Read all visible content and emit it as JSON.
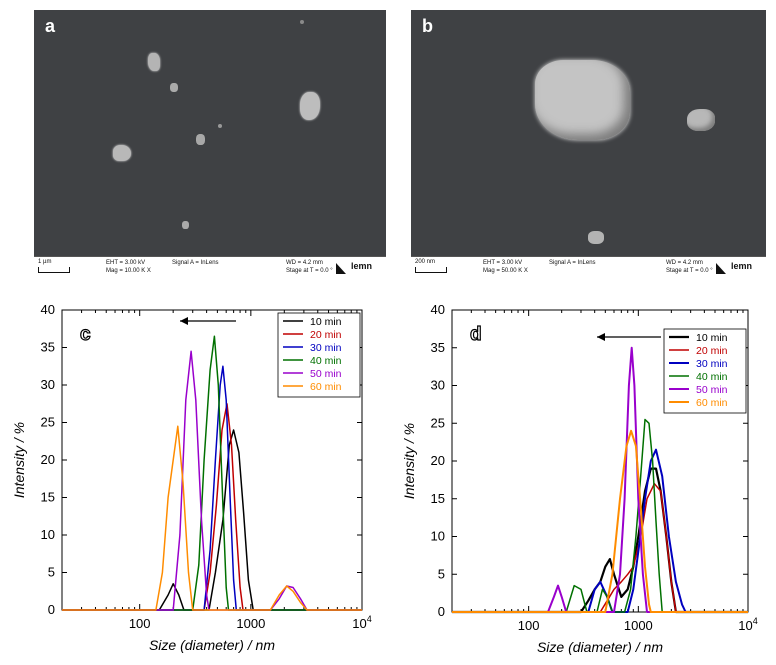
{
  "micrographs": [
    {
      "letter": "a",
      "scale_label": "1 µm",
      "eht": "EHT = 3.00 kV",
      "mag": "Mag = 10.00 K X",
      "signal": "Signal A = InLens",
      "wd": "WD = 4.2 mm",
      "stage": "Stage at T = 0.0 °",
      "logo": "lemn"
    },
    {
      "letter": "b",
      "scale_label": "200 nm",
      "eht": "EHT = 3.00 kV",
      "mag": "Mag = 50.00 K X",
      "signal": "Signal A = InLens",
      "wd": "WD = 4.2 mm",
      "stage": "Stage at T = 0.0 °",
      "logo": "lemn"
    }
  ],
  "chart_data": [
    {
      "type": "line",
      "panel": "c",
      "xlabel": "Size (diameter) / nm",
      "ylabel": "Intensity / %",
      "xscale": "log",
      "xlim": [
        20,
        10000
      ],
      "ylim": [
        0,
        40
      ],
      "xticks": [
        {
          "v": 100,
          "label": "100"
        },
        {
          "v": 1000,
          "label": "1000"
        },
        {
          "v": 10000,
          "label": "10",
          "sup": "4"
        }
      ],
      "yticks": [
        0,
        5,
        10,
        15,
        20,
        25,
        30,
        35,
        40
      ],
      "legend_position": "top-right",
      "arrow": "left",
      "series": [
        {
          "name": "10 min",
          "color": "#000000",
          "points": [
            [
              20,
              0
            ],
            [
              150,
              0
            ],
            [
              180,
              2
            ],
            [
              200,
              3.5
            ],
            [
              225,
              2
            ],
            [
              250,
              0
            ],
            [
              420,
              0
            ],
            [
              480,
              5
            ],
            [
              560,
              12
            ],
            [
              640,
              22
            ],
            [
              700,
              24
            ],
            [
              780,
              21
            ],
            [
              860,
              13
            ],
            [
              950,
              4
            ],
            [
              1050,
              0
            ],
            [
              10000,
              0
            ]
          ]
        },
        {
          "name": "20 min",
          "color": "#c00000",
          "points": [
            [
              20,
              0
            ],
            [
              380,
              0
            ],
            [
              430,
              5
            ],
            [
              490,
              14
            ],
            [
              550,
              24
            ],
            [
              610,
              27.5
            ],
            [
              670,
              22
            ],
            [
              730,
              12
            ],
            [
              800,
              3
            ],
            [
              850,
              0
            ],
            [
              10000,
              0
            ]
          ]
        },
        {
          "name": "30 min",
          "color": "#0000c0",
          "points": [
            [
              20,
              0
            ],
            [
              380,
              0
            ],
            [
              430,
              8
            ],
            [
              480,
              20
            ],
            [
              530,
              30
            ],
            [
              560,
              32.5
            ],
            [
              600,
              28
            ],
            [
              650,
              15
            ],
            [
              700,
              4
            ],
            [
              740,
              0
            ],
            [
              10000,
              0
            ]
          ]
        },
        {
          "name": "40 min",
          "color": "#007000",
          "points": [
            [
              20,
              0
            ],
            [
              300,
              0
            ],
            [
              340,
              6
            ],
            [
              380,
              20
            ],
            [
              430,
              32
            ],
            [
              470,
              36.5
            ],
            [
              510,
              30
            ],
            [
              560,
              14
            ],
            [
              600,
              3
            ],
            [
              630,
              0
            ],
            [
              10000,
              0
            ]
          ]
        },
        {
          "name": "50 min",
          "color": "#9900cc",
          "points": [
            [
              20,
              0
            ],
            [
              200,
              0
            ],
            [
              230,
              10
            ],
            [
              260,
              28
            ],
            [
              290,
              34.5
            ],
            [
              320,
              28
            ],
            [
              360,
              12
            ],
            [
              400,
              2
            ],
            [
              420,
              0
            ],
            [
              1500,
              0
            ],
            [
              1800,
              1.5
            ],
            [
              2100,
              3.2
            ],
            [
              2400,
              3
            ],
            [
              2800,
              1.5
            ],
            [
              3200,
              0
            ],
            [
              10000,
              0
            ]
          ]
        },
        {
          "name": "60 min",
          "color": "#ff8c00",
          "points": [
            [
              20,
              0
            ],
            [
              140,
              0
            ],
            [
              160,
              5
            ],
            [
              180,
              15
            ],
            [
              200,
              20
            ],
            [
              220,
              24.5
            ],
            [
              245,
              17
            ],
            [
              275,
              5
            ],
            [
              300,
              0
            ],
            [
              1500,
              0
            ],
            [
              1800,
              2
            ],
            [
              2100,
              3.2
            ],
            [
              2400,
              2.5
            ],
            [
              2800,
              1
            ],
            [
              3200,
              0
            ],
            [
              10000,
              0
            ]
          ]
        }
      ]
    },
    {
      "type": "line",
      "panel": "d",
      "xlabel": "Size (diameter) / nm",
      "ylabel": "Intensity / %",
      "xscale": "log",
      "xlim": [
        20,
        10000
      ],
      "ylim": [
        0,
        40
      ],
      "xticks": [
        {
          "v": 100,
          "label": "100"
        },
        {
          "v": 1000,
          "label": "1000"
        },
        {
          "v": 10000,
          "label": "10",
          "sup": "4"
        }
      ],
      "yticks": [
        0,
        5,
        10,
        15,
        20,
        25,
        30,
        35,
        40
      ],
      "legend_position": "top-right",
      "arrow": "left",
      "series": [
        {
          "name": "10 min",
          "color": "#000000",
          "width": 2.2,
          "points": [
            [
              20,
              0
            ],
            [
              300,
              0
            ],
            [
              350,
              1.5
            ],
            [
              400,
              3
            ],
            [
              450,
              4
            ],
            [
              500,
              6
            ],
            [
              550,
              7
            ],
            [
              600,
              5
            ],
            [
              700,
              2
            ],
            [
              800,
              3
            ],
            [
              900,
              6
            ],
            [
              1000,
              10
            ],
            [
              1150,
              16
            ],
            [
              1300,
              19
            ],
            [
              1450,
              19
            ],
            [
              1600,
              16
            ],
            [
              1800,
              10
            ],
            [
              2000,
              4
            ],
            [
              2200,
              0
            ],
            [
              10000,
              0
            ]
          ]
        },
        {
          "name": "20 min",
          "color": "#c00000",
          "points": [
            [
              20,
              0
            ],
            [
              450,
              0
            ],
            [
              520,
              1.5
            ],
            [
              600,
              3
            ],
            [
              700,
              4
            ],
            [
              800,
              5
            ],
            [
              900,
              6
            ],
            [
              1050,
              10
            ],
            [
              1200,
              15
            ],
            [
              1400,
              17
            ],
            [
              1600,
              16
            ],
            [
              1800,
              10
            ],
            [
              2000,
              4
            ],
            [
              2200,
              0
            ],
            [
              10000,
              0
            ]
          ]
        },
        {
          "name": "30 min",
          "color": "#0000c0",
          "width": 2.0,
          "points": [
            [
              20,
              0
            ],
            [
              350,
              0
            ],
            [
              400,
              3
            ],
            [
              450,
              4
            ],
            [
              520,
              2
            ],
            [
              580,
              0
            ],
            [
              800,
              0
            ],
            [
              900,
              3
            ],
            [
              1000,
              8
            ],
            [
              1150,
              15
            ],
            [
              1300,
              20
            ],
            [
              1450,
              21.5
            ],
            [
              1650,
              18
            ],
            [
              1900,
              10
            ],
            [
              2200,
              4
            ],
            [
              2500,
              1
            ],
            [
              2700,
              0
            ],
            [
              10000,
              0
            ]
          ]
        },
        {
          "name": "40 min",
          "color": "#007000",
          "points": [
            [
              20,
              0
            ],
            [
              220,
              0
            ],
            [
              260,
              3.5
            ],
            [
              300,
              3
            ],
            [
              340,
              0
            ],
            [
              420,
              0
            ],
            [
              470,
              3
            ],
            [
              520,
              2
            ],
            [
              580,
              0
            ],
            [
              750,
              0
            ],
            [
              850,
              3
            ],
            [
              950,
              10
            ],
            [
              1050,
              18
            ],
            [
              1150,
              25.5
            ],
            [
              1250,
              25
            ],
            [
              1350,
              20
            ],
            [
              1450,
              12
            ],
            [
              1550,
              5
            ],
            [
              1650,
              0
            ],
            [
              10000,
              0
            ]
          ]
        },
        {
          "name": "50 min",
          "color": "#9900cc",
          "width": 2.0,
          "points": [
            [
              20,
              0
            ],
            [
              150,
              0
            ],
            [
              170,
              2
            ],
            [
              185,
              3.5
            ],
            [
              200,
              2
            ],
            [
              220,
              0
            ],
            [
              600,
              0
            ],
            [
              680,
              5
            ],
            [
              750,
              15
            ],
            [
              820,
              30
            ],
            [
              870,
              35
            ],
            [
              920,
              30
            ],
            [
              1000,
              15
            ],
            [
              1100,
              5
            ],
            [
              1200,
              0
            ],
            [
              10000,
              0
            ]
          ]
        },
        {
          "name": "60 min",
          "color": "#ff8c00",
          "width": 2.0,
          "points": [
            [
              20,
              0
            ],
            [
              500,
              0
            ],
            [
              580,
              5
            ],
            [
              680,
              15
            ],
            [
              780,
              22
            ],
            [
              860,
              24
            ],
            [
              950,
              22
            ],
            [
              1050,
              14
            ],
            [
              1150,
              6
            ],
            [
              1250,
              1
            ],
            [
              1300,
              0
            ],
            [
              10000,
              0
            ]
          ]
        }
      ]
    }
  ]
}
